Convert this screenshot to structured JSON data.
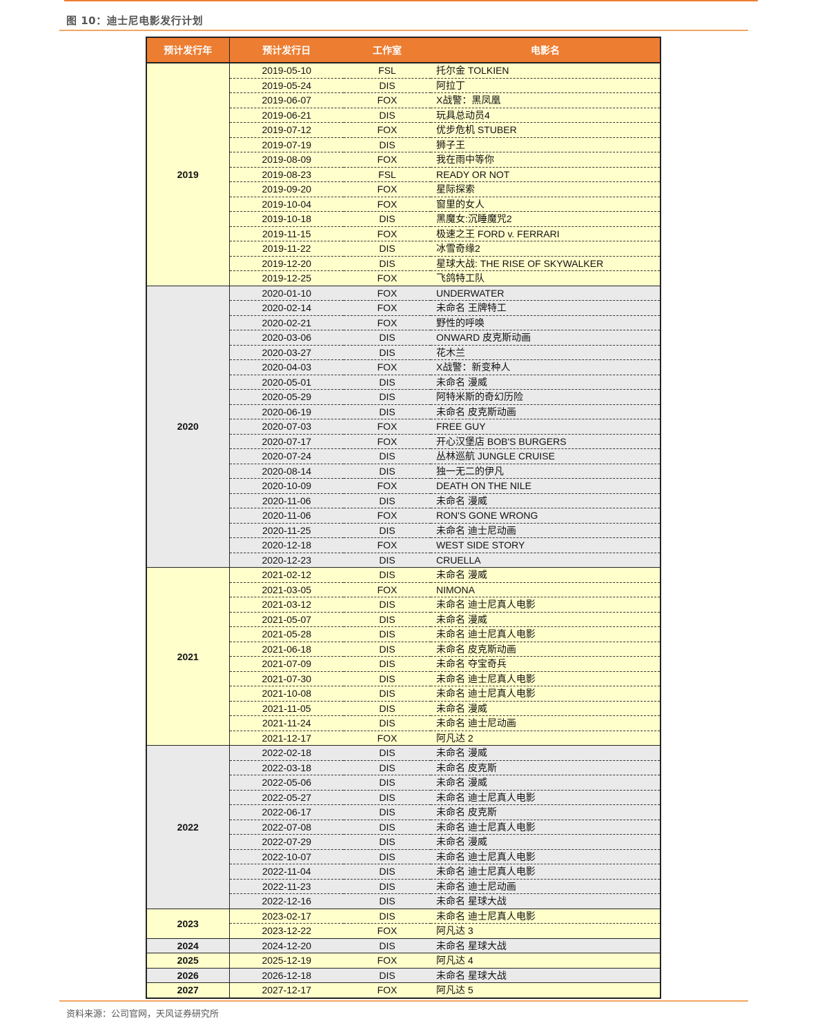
{
  "title": "图 10：迪士尼电影发行计划",
  "source": "资料来源：公司官网，天风证券研究所",
  "colors": {
    "header": "#ED7D31",
    "yellow": "#FFFFCC",
    "gray": "#EAEAEA"
  },
  "headers": [
    "预计发行年",
    "预计发行日",
    "工作室",
    "电影名"
  ],
  "groups": [
    {
      "year": "2019",
      "rows": [
        [
          "2019-05-10",
          "FSL",
          "托尔金 TOLKIEN"
        ],
        [
          "2019-05-24",
          "DIS",
          "阿拉丁"
        ],
        [
          "2019-06-07",
          "FOX",
          "X战警：黑凤凰"
        ],
        [
          "2019-06-21",
          "DIS",
          "玩具总动员4"
        ],
        [
          "2019-07-12",
          "FOX",
          "优步危机 STUBER"
        ],
        [
          "2019-07-19",
          "DIS",
          "狮子王"
        ],
        [
          "2019-08-09",
          "FOX",
          "我在雨中等你"
        ],
        [
          "2019-08-23",
          "FSL",
          "READY OR NOT"
        ],
        [
          "2019-09-20",
          "FOX",
          "星际探索"
        ],
        [
          "2019-10-04",
          "FOX",
          "窗里的女人"
        ],
        [
          "2019-10-18",
          "DIS",
          "黑魔女:沉睡魔咒2"
        ],
        [
          "2019-11-15",
          "FOX",
          "极速之王 FORD v. FERRARI"
        ],
        [
          "2019-11-22",
          "DIS",
          "冰雪奇缘2"
        ],
        [
          "2019-12-20",
          "DIS",
          "星球大战: THE RISE OF SKYWALKER"
        ],
        [
          "2019-12-25",
          "FOX",
          "飞鸽特工队"
        ]
      ]
    },
    {
      "year": "2020",
      "rows": [
        [
          "2020-01-10",
          "FOX",
          "UNDERWATER"
        ],
        [
          "2020-02-14",
          "FOX",
          "未命名 王牌特工"
        ],
        [
          "2020-02-21",
          "FOX",
          "野性的呼唤"
        ],
        [
          "2020-03-06",
          "DIS",
          "ONWARD 皮克斯动画"
        ],
        [
          "2020-03-27",
          "DIS",
          "花木兰"
        ],
        [
          "2020-04-03",
          "FOX",
          "X战警：新变种人"
        ],
        [
          "2020-05-01",
          "DIS",
          "未命名 漫威"
        ],
        [
          "2020-05-29",
          "DIS",
          "阿特米斯的奇幻历险"
        ],
        [
          "2020-06-19",
          "DIS",
          "未命名 皮克斯动画"
        ],
        [
          "2020-07-03",
          "FOX",
          "FREE GUY"
        ],
        [
          "2020-07-17",
          "FOX",
          "开心汉堡店 BOB'S BURGERS"
        ],
        [
          "2020-07-24",
          "DIS",
          "丛林巡航 JUNGLE CRUISE"
        ],
        [
          "2020-08-14",
          "DIS",
          "独一无二的伊凡"
        ],
        [
          "2020-10-09",
          "FOX",
          "DEATH ON THE NILE"
        ],
        [
          "2020-11-06",
          "DIS",
          "未命名 漫威"
        ],
        [
          "2020-11-06",
          "FOX",
          "RON'S GONE WRONG"
        ],
        [
          "2020-11-25",
          "DIS",
          "未命名 迪士尼动画"
        ],
        [
          "2020-12-18",
          "FOX",
          "WEST SIDE STORY"
        ],
        [
          "2020-12-23",
          "DIS",
          "CRUELLA"
        ]
      ]
    },
    {
      "year": "2021",
      "rows": [
        [
          "2021-02-12",
          "DIS",
          "未命名 漫威"
        ],
        [
          "2021-03-05",
          "FOX",
          "NIMONA"
        ],
        [
          "2021-03-12",
          "DIS",
          "未命名 迪士尼真人电影"
        ],
        [
          "2021-05-07",
          "DIS",
          "未命名 漫威"
        ],
        [
          "2021-05-28",
          "DIS",
          "未命名 迪士尼真人电影"
        ],
        [
          "2021-06-18",
          "DIS",
          "未命名 皮克斯动画"
        ],
        [
          "2021-07-09",
          "DIS",
          "未命名 夺宝奇兵"
        ],
        [
          "2021-07-30",
          "DIS",
          "未命名 迪士尼真人电影"
        ],
        [
          "2021-10-08",
          "DIS",
          "未命名 迪士尼真人电影"
        ],
        [
          "2021-11-05",
          "DIS",
          "未命名 漫威"
        ],
        [
          "2021-11-24",
          "DIS",
          "未命名 迪士尼动画"
        ],
        [
          "2021-12-17",
          "FOX",
          "阿凡达 2"
        ]
      ]
    },
    {
      "year": "2022",
      "rows": [
        [
          "2022-02-18",
          "DIS",
          "未命名 漫威"
        ],
        [
          "2022-03-18",
          "DIS",
          "未命名 皮克斯"
        ],
        [
          "2022-05-06",
          "DIS",
          "未命名 漫威"
        ],
        [
          "2022-05-27",
          "DIS",
          "未命名 迪士尼真人电影"
        ],
        [
          "2022-06-17",
          "DIS",
          "未命名 皮克斯"
        ],
        [
          "2022-07-08",
          "DIS",
          "未命名 迪士尼真人电影"
        ],
        [
          "2022-07-29",
          "DIS",
          "未命名 漫威"
        ],
        [
          "2022-10-07",
          "DIS",
          "未命名 迪士尼真人电影"
        ],
        [
          "2022-11-04",
          "DIS",
          "未命名 迪士尼真人电影"
        ],
        [
          "2022-11-23",
          "DIS",
          "未命名 迪士尼动画"
        ],
        [
          "2022-12-16",
          "DIS",
          "未命名 星球大战"
        ]
      ]
    },
    {
      "year": "2023",
      "rows": [
        [
          "2023-02-17",
          "DIS",
          "未命名 迪士尼真人电影"
        ],
        [
          "2023-12-22",
          "FOX",
          "阿凡达 3"
        ]
      ]
    },
    {
      "year": "2024",
      "rows": [
        [
          "2024-12-20",
          "DIS",
          "未命名 星球大战"
        ]
      ]
    },
    {
      "year": "2025",
      "rows": [
        [
          "2025-12-19",
          "FOX",
          "阿凡达 4"
        ]
      ]
    },
    {
      "year": "2026",
      "rows": [
        [
          "2026-12-18",
          "DIS",
          "未命名 星球大战"
        ]
      ]
    },
    {
      "year": "2027",
      "rows": [
        [
          "2027-12-17",
          "FOX",
          "阿凡达 5"
        ]
      ]
    }
  ]
}
